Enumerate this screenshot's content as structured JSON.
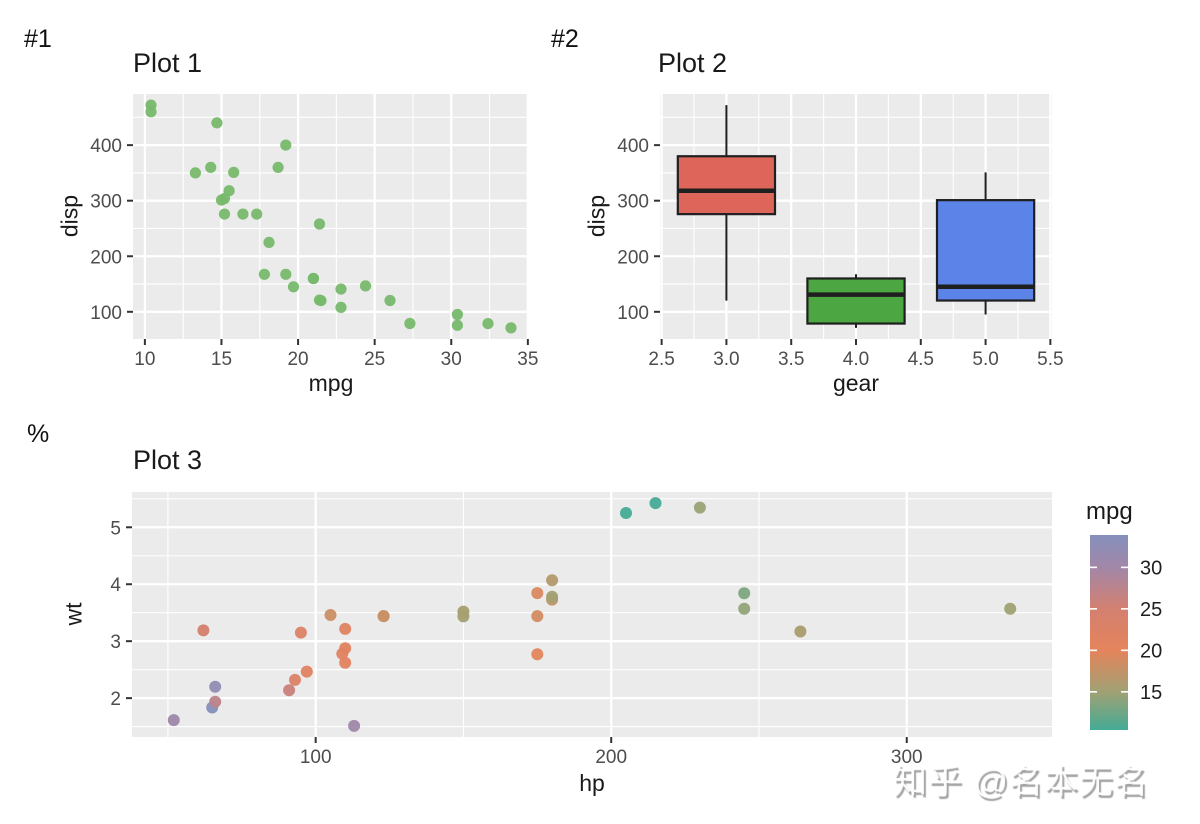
{
  "figure": {
    "background": "#ffffff",
    "panel_background": "#ebebeb",
    "grid_color": "#ffffff",
    "title_color": "#1a1a1a",
    "axis_text_color": "#4d4d4d",
    "tick_mark_color": "#333333",
    "box_outline_color": "#1f1f1f"
  },
  "tags": [
    "#1",
    "#2",
    "%"
  ],
  "watermark": {
    "text": "知乎 @名本无名"
  },
  "chart_data": [
    {
      "type": "scatter",
      "title": "Plot 1",
      "xlabel": "mpg",
      "ylabel": "disp",
      "point_color": "#77b96b",
      "x": [
        21,
        21,
        22.8,
        21.4,
        18.7,
        18.1,
        14.3,
        24.4,
        22.8,
        19.2,
        17.8,
        16.4,
        17.3,
        15.2,
        10.4,
        10.4,
        14.7,
        32.4,
        30.4,
        33.9,
        21.5,
        15.5,
        15.2,
        13.3,
        19.2,
        27.3,
        26,
        30.4,
        15.8,
        19.7,
        15,
        21.4
      ],
      "y": [
        160,
        160,
        108,
        258,
        360,
        225,
        360,
        146.7,
        140.8,
        167.6,
        167.6,
        275.8,
        275.8,
        275.8,
        472,
        460,
        440,
        78.7,
        75.7,
        71.1,
        120.1,
        318,
        304,
        350,
        400,
        79,
        120.3,
        95.1,
        351,
        145,
        301,
        121
      ],
      "xdomain": [
        9.225,
        35.075
      ],
      "ydomain": [
        51.055,
        492.045
      ],
      "xticks": [
        10,
        15,
        20,
        25,
        30,
        35
      ],
      "xtick_labels": [
        "10",
        "15",
        "20",
        "25",
        "30",
        "35"
      ],
      "yticks": [
        100,
        200,
        300,
        400
      ],
      "ytick_labels": [
        "100",
        "200",
        "300",
        "400"
      ],
      "xminor": [
        12.5,
        17.5,
        22.5,
        27.5,
        32.5
      ],
      "yminor": [
        150,
        250,
        350,
        450
      ],
      "grid": true
    },
    {
      "type": "boxplot",
      "title": "Plot 2",
      "xlabel": "gear",
      "ylabel": "disp",
      "box_width": 0.75,
      "boxes": [
        {
          "x": 3,
          "fill": "#dd655a",
          "lower_whisker": 120.1,
          "q1": 275.8,
          "median": 318,
          "q3": 380,
          "upper_whisker": 472
        },
        {
          "x": 4,
          "fill": "#4ca642",
          "lower_whisker": 71.1,
          "q1": 78.85,
          "median": 130.9,
          "q3": 160,
          "upper_whisker": 167.6
        },
        {
          "x": 5,
          "fill": "#5b83e8",
          "lower_whisker": 95.1,
          "q1": 120.3,
          "median": 145,
          "q3": 301,
          "upper_whisker": 351
        }
      ],
      "xdomain": [
        2.4875,
        5.5125
      ],
      "ydomain": [
        51.055,
        492.045
      ],
      "xticks": [
        2.5,
        3.0,
        3.5,
        4.0,
        4.5,
        5.0,
        5.5
      ],
      "xtick_labels": [
        "2.5",
        "3.0",
        "3.5",
        "4.0",
        "4.5",
        "5.0",
        "5.5"
      ],
      "yticks": [
        100,
        200,
        300,
        400
      ],
      "ytick_labels": [
        "100",
        "200",
        "300",
        "400"
      ],
      "xminor": [
        2.75,
        3.25,
        3.75,
        4.25,
        4.75,
        5.25
      ],
      "yminor": [
        150,
        250,
        350,
        450
      ],
      "grid": true
    },
    {
      "type": "scatter",
      "title": "Plot 3",
      "xlabel": "hp",
      "ylabel": "wt",
      "x": [
        110,
        110,
        93,
        110,
        175,
        105,
        245,
        62,
        95,
        123,
        123,
        180,
        180,
        180,
        205,
        215,
        230,
        66,
        52,
        65,
        97,
        150,
        150,
        245,
        175,
        66,
        91,
        113,
        264,
        175,
        335,
        109
      ],
      "y": [
        2.62,
        2.875,
        2.32,
        3.215,
        3.44,
        3.46,
        3.57,
        3.19,
        3.15,
        3.44,
        3.44,
        4.07,
        3.73,
        3.78,
        5.25,
        5.424,
        5.345,
        2.2,
        1.615,
        1.835,
        2.465,
        3.52,
        3.435,
        3.84,
        3.845,
        1.935,
        2.14,
        1.513,
        3.17,
        2.77,
        3.57,
        2.78
      ],
      "color_value": [
        21,
        21,
        22.8,
        21.4,
        18.7,
        18.1,
        14.3,
        24.4,
        22.8,
        19.2,
        17.8,
        16.4,
        17.3,
        15.2,
        10.4,
        10.4,
        14.7,
        32.4,
        30.4,
        33.9,
        21.5,
        15.5,
        15.2,
        13.3,
        19.2,
        27.3,
        26,
        30.4,
        15.8,
        19.7,
        15,
        21.4
      ],
      "xdomain": [
        37.85,
        349.15
      ],
      "ydomain": [
        1.3175,
        5.6195
      ],
      "xticks": [
        100,
        200,
        300
      ],
      "xtick_labels": [
        "100",
        "200",
        "300"
      ],
      "yticks": [
        2,
        3,
        4,
        5
      ],
      "ytick_labels": [
        "2",
        "3",
        "4",
        "5"
      ],
      "xminor": [
        50,
        150,
        250
      ],
      "yminor": [
        1.5,
        2.5,
        3.5,
        4.5,
        5.5
      ],
      "grid": true,
      "legend": {
        "title": "mpg",
        "position": "right",
        "domain": [
          10.4,
          33.9
        ],
        "ticks": [
          15,
          20,
          25,
          30
        ],
        "tick_labels": [
          "15",
          "20",
          "25",
          "30"
        ],
        "stops": [
          {
            "value": 10.4,
            "color": "#44ab95"
          },
          {
            "value": 15,
            "color": "#a0a173"
          },
          {
            "value": 20,
            "color": "#e5845c"
          },
          {
            "value": 25,
            "color": "#d38070"
          },
          {
            "value": 30,
            "color": "#a287a8"
          },
          {
            "value": 33.9,
            "color": "#8590bc"
          }
        ]
      }
    }
  ]
}
